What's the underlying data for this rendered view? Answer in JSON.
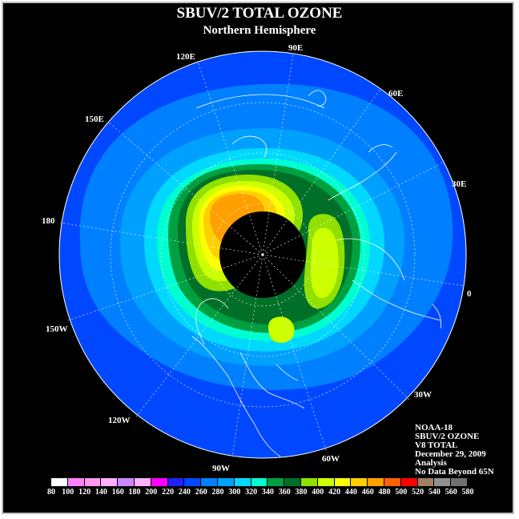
{
  "title": "SBUV/2 TOTAL OZONE",
  "subtitle": "Northern Hemisphere",
  "longitude_labels": {
    "e90": "90E",
    "e60": "60E",
    "e30": "30E",
    "zero": "0",
    "w30": "30W",
    "w60": "60W",
    "w90": "90W",
    "w120": "120W",
    "w150": "150W",
    "d180": "180",
    "e150": "150E",
    "e120": "120E"
  },
  "info": {
    "satellite": "NOAA-18",
    "product": "SBUV/2 OZONE",
    "version": "V8 TOTAL",
    "date": "December 29, 2009",
    "type": "Analysis",
    "note": "No Data Beyond 65N"
  },
  "colorbar": {
    "ticks": [
      "80",
      "100",
      "120",
      "140",
      "160",
      "180",
      "200",
      "220",
      "240",
      "260",
      "280",
      "300",
      "320",
      "340",
      "360",
      "380",
      "400",
      "420",
      "440",
      "460",
      "480",
      "500",
      "520",
      "540",
      "560",
      "580"
    ],
    "colors": [
      "#ffffff",
      "#ff80ff",
      "#ff99ee",
      "#ffb0ff",
      "#cc88ff",
      "#ffb0ff",
      "#ff00ff",
      "#2020ff",
      "#0048ff",
      "#0080ff",
      "#00a0ff",
      "#00d8ff",
      "#00ffd0",
      "#00a040",
      "#007028",
      "#90e000",
      "#ccff00",
      "#ffff00",
      "#ffd000",
      "#ffa000",
      "#ff6000",
      "#ff0000",
      "#a08060",
      "#909090",
      "#707070"
    ]
  }
}
